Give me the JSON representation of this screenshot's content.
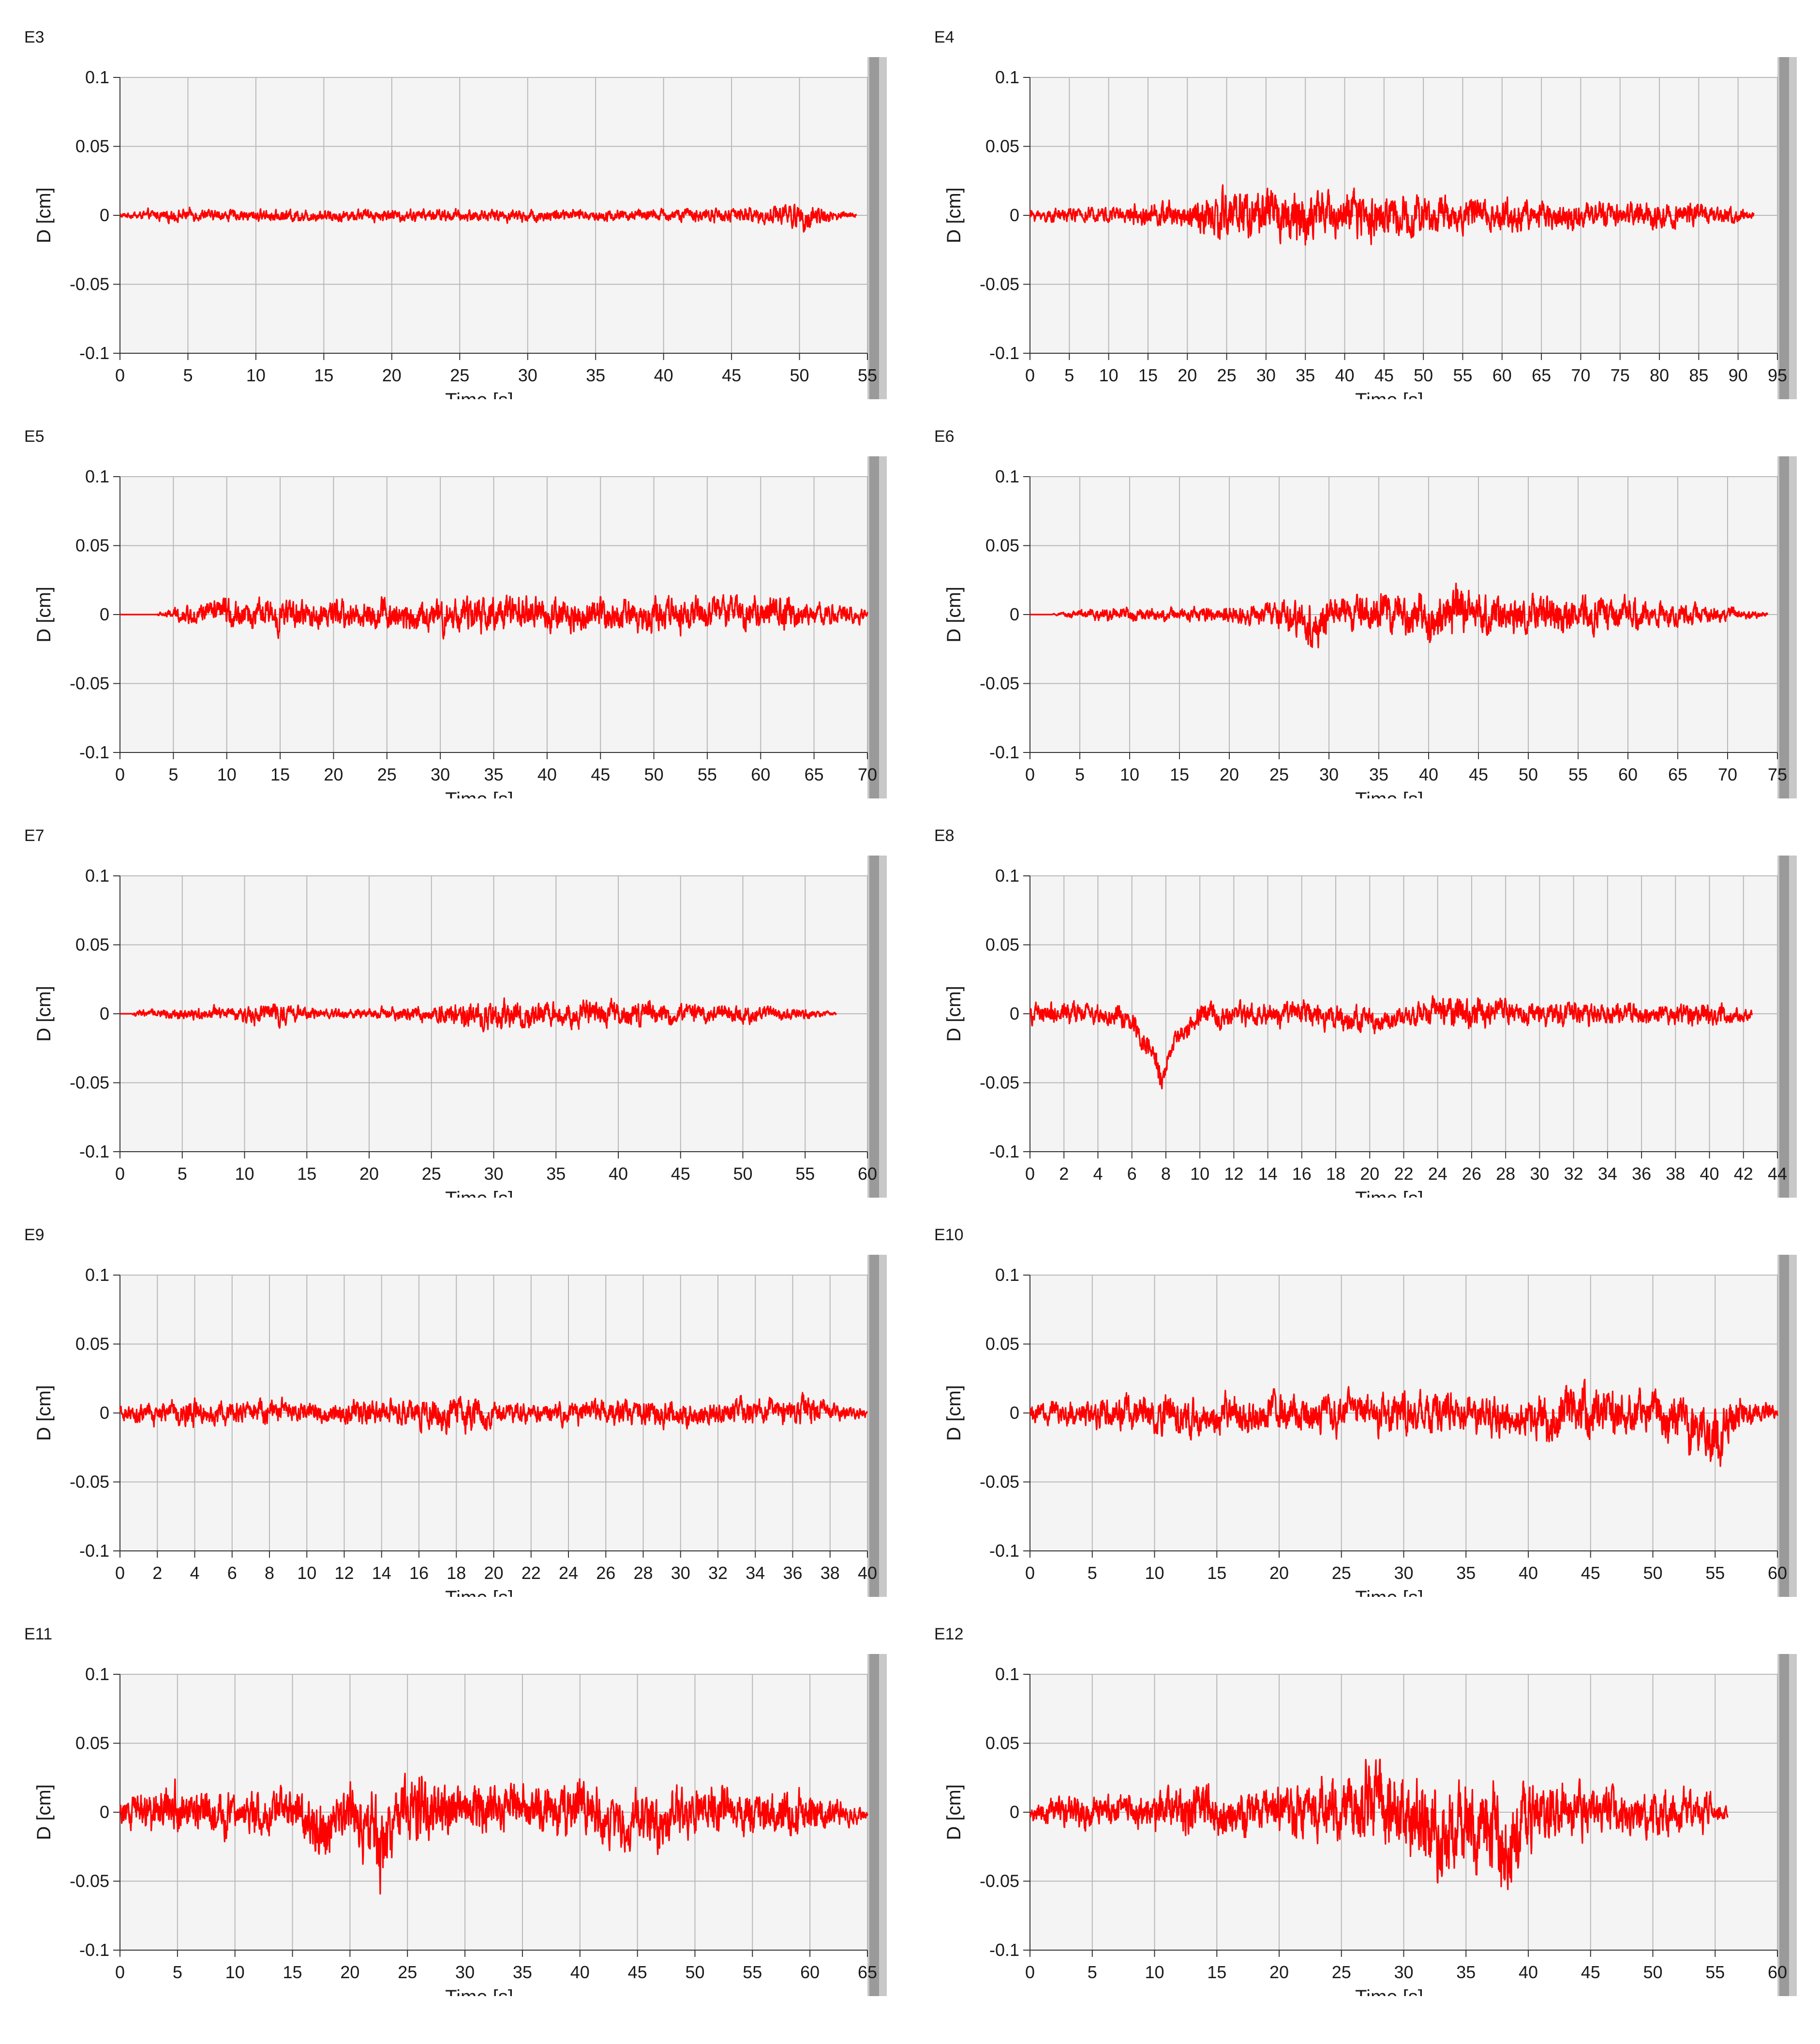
{
  "chart_data": [
    {
      "id": "E3",
      "title": "E3",
      "type": "line",
      "xlabel": "Time [s]",
      "ylabel": "D [cm]",
      "xlim": [
        0,
        55
      ],
      "ylim": [
        -0.1,
        0.1
      ],
      "xticks": [
        0,
        5,
        10,
        15,
        20,
        25,
        30,
        35,
        40,
        45,
        50,
        55
      ],
      "yticks": [
        0.1,
        0.05,
        0,
        -0.05,
        -0.1
      ],
      "yticklabels": [
        "0.1",
        "0.05",
        "0",
        "-0.05",
        "-0.1"
      ],
      "grid": true,
      "series": [
        {
          "color": "#ff0000",
          "duration": 54.2,
          "onset": 0,
          "x": [
            0,
            2,
            4,
            6,
            8,
            10,
            15,
            20,
            25,
            30,
            35,
            40,
            45,
            48,
            50,
            51,
            52,
            54.2
          ],
          "amp": [
            0.002,
            0.004,
            0.005,
            0.005,
            0.005,
            0.005,
            0.005,
            0.005,
            0.005,
            0.005,
            0.005,
            0.005,
            0.006,
            0.008,
            0.011,
            0.011,
            0.006,
            0.002
          ],
          "bias": [
            0,
            0,
            0,
            0,
            0,
            0,
            0,
            0,
            0,
            0,
            0,
            0,
            0,
            0,
            0,
            0,
            0,
            0
          ]
        }
      ]
    },
    {
      "id": "E4",
      "title": "E4",
      "type": "line",
      "xlabel": "Time [s]",
      "ylabel": "D [cm]",
      "xlim": [
        0,
        95
      ],
      "ylim": [
        -0.1,
        0.1
      ],
      "xticks": [
        0,
        5,
        10,
        15,
        20,
        25,
        30,
        35,
        40,
        45,
        50,
        55,
        60,
        65,
        70,
        75,
        80,
        85,
        90,
        95
      ],
      "yticks": [
        0.1,
        0.05,
        0,
        -0.05,
        -0.1
      ],
      "yticklabels": [
        "0.1",
        "0.05",
        "0",
        "-0.05",
        "-0.1"
      ],
      "grid": true,
      "series": [
        {
          "color": "#ff0000",
          "duration": 92,
          "onset": 0,
          "x": [
            0,
            5,
            10,
            15,
            20,
            23,
            27,
            30,
            34,
            37,
            45,
            50,
            55,
            60,
            65,
            70,
            75,
            80,
            85,
            90,
            92
          ],
          "amp": [
            0.005,
            0.006,
            0.007,
            0.009,
            0.012,
            0.021,
            0.024,
            0.02,
            0.023,
            0.017,
            0.021,
            0.016,
            0.013,
            0.014,
            0.012,
            0.011,
            0.01,
            0.01,
            0.009,
            0.007,
            0.002
          ],
          "bias": [
            0,
            0,
            0,
            0,
            0,
            0,
            0,
            0,
            0,
            0,
            0,
            0,
            0,
            0,
            0,
            0,
            0,
            0,
            0,
            0,
            0
          ]
        }
      ]
    },
    {
      "id": "E5",
      "title": "E5",
      "type": "line",
      "xlabel": "Time [s]",
      "ylabel": "D [cm]",
      "xlim": [
        0,
        70
      ],
      "ylim": [
        -0.1,
        0.1
      ],
      "xticks": [
        0,
        5,
        10,
        15,
        20,
        25,
        30,
        35,
        40,
        45,
        50,
        55,
        60,
        65,
        70
      ],
      "yticks": [
        0.1,
        0.05,
        0,
        -0.05,
        -0.1
      ],
      "yticklabels": [
        "0.1",
        "0.05",
        "0",
        "-0.05",
        "-0.1"
      ],
      "grid": true,
      "series": [
        {
          "color": "#ff0000",
          "duration": 70,
          "onset": 3.5,
          "x": [
            0,
            3,
            5,
            8,
            10,
            20,
            30,
            40,
            50,
            60,
            65,
            70
          ],
          "amp": [
            0,
            0,
            0.005,
            0.01,
            0.012,
            0.012,
            0.014,
            0.014,
            0.014,
            0.015,
            0.01,
            0.006
          ],
          "bias": [
            0,
            0,
            0,
            0,
            0,
            0,
            0,
            0,
            0,
            0,
            0,
            0
          ]
        }
      ]
    },
    {
      "id": "E6",
      "title": "E6",
      "type": "line",
      "xlabel": "Time [s]",
      "ylabel": "D [cm]",
      "xlim": [
        0,
        75
      ],
      "ylim": [
        -0.1,
        0.1
      ],
      "xticks": [
        0,
        5,
        10,
        15,
        20,
        25,
        30,
        35,
        40,
        45,
        50,
        55,
        60,
        65,
        70,
        75
      ],
      "yticks": [
        0.1,
        0.05,
        0,
        -0.05,
        -0.1
      ],
      "yticklabels": [
        "0.1",
        "0.05",
        "0",
        "-0.05",
        "-0.1"
      ],
      "grid": true,
      "series": [
        {
          "color": "#ff0000",
          "duration": 74,
          "onset": 2,
          "x": [
            0,
            2,
            5,
            10,
            15,
            20,
            25,
            28,
            29,
            30,
            35,
            40,
            43,
            45,
            50,
            55,
            60,
            65,
            70,
            74
          ],
          "amp": [
            0,
            0,
            0.004,
            0.006,
            0.005,
            0.007,
            0.01,
            0.018,
            0.022,
            0.013,
            0.016,
            0.018,
            0.02,
            0.017,
            0.016,
            0.016,
            0.012,
            0.01,
            0.006,
            0.002
          ],
          "bias": [
            0,
            0,
            0,
            0,
            0,
            0,
            0,
            -0.006,
            -0.012,
            0,
            0,
            0,
            0,
            0,
            0,
            0,
            0,
            0,
            0,
            0
          ]
        }
      ]
    },
    {
      "id": "E7",
      "title": "E7",
      "type": "line",
      "xlabel": "Time [s]",
      "ylabel": "D [cm]",
      "xlim": [
        0,
        60
      ],
      "ylim": [
        -0.1,
        0.1
      ],
      "xticks": [
        0,
        5,
        10,
        15,
        20,
        25,
        30,
        35,
        40,
        45,
        50,
        55,
        60
      ],
      "yticks": [
        0.1,
        0.05,
        0,
        -0.05,
        -0.1
      ],
      "yticklabels": [
        "0.1",
        "0.05",
        "0",
        "-0.05",
        "-0.1"
      ],
      "grid": true,
      "series": [
        {
          "color": "#ff0000",
          "duration": 57.5,
          "onset": 1,
          "x": [
            0,
            2,
            5,
            10,
            12,
            15,
            20,
            25,
            30,
            35,
            40,
            45,
            50,
            55,
            57.5
          ],
          "amp": [
            0.001,
            0.003,
            0.005,
            0.006,
            0.009,
            0.005,
            0.004,
            0.007,
            0.013,
            0.01,
            0.011,
            0.008,
            0.007,
            0.004,
            0.001
          ],
          "bias": [
            0,
            0,
            0,
            0,
            0,
            0,
            0,
            0,
            -0.003,
            0,
            0,
            0,
            0,
            0,
            0
          ]
        }
      ]
    },
    {
      "id": "E8",
      "title": "E8",
      "type": "line",
      "xlabel": "Time [s]",
      "ylabel": "D [cm]",
      "xlim": [
        0,
        44
      ],
      "ylim": [
        -0.1,
        0.1
      ],
      "xticks": [
        0,
        2,
        4,
        6,
        8,
        10,
        12,
        14,
        16,
        18,
        20,
        22,
        24,
        26,
        28,
        30,
        32,
        34,
        36,
        38,
        40,
        42,
        44
      ],
      "yticks": [
        0.1,
        0.05,
        0,
        -0.05,
        -0.1
      ],
      "yticklabels": [
        "0.1",
        "0.05",
        "0",
        "-0.05",
        "-0.1"
      ],
      "grid": true,
      "series": [
        {
          "color": "#ff0000",
          "duration": 42.5,
          "onset": 0,
          "x": [
            0,
            2,
            4,
            6,
            7,
            7.8,
            8.5,
            10,
            12,
            16,
            20,
            22,
            24,
            25.5,
            27,
            30,
            34,
            38,
            40,
            42,
            42.5
          ],
          "amp": [
            0.008,
            0.01,
            0.009,
            0.01,
            0.01,
            0.012,
            0.008,
            0.01,
            0.009,
            0.011,
            0.01,
            0.008,
            0.012,
            0.015,
            0.012,
            0.01,
            0.009,
            0.008,
            0.01,
            0.005,
            0.003
          ],
          "bias": [
            0,
            0,
            0,
            -0.004,
            -0.025,
            -0.048,
            -0.02,
            0,
            0,
            0,
            -0.006,
            -0.004,
            0.004,
            0.002,
            0,
            0,
            0,
            0,
            0,
            -0.002,
            0
          ]
        }
      ]
    },
    {
      "id": "E9",
      "title": "E9",
      "type": "line",
      "xlabel": "Time [s]",
      "ylabel": "D [cm]",
      "xlim": [
        0,
        40
      ],
      "ylim": [
        -0.1,
        0.1
      ],
      "xticks": [
        0,
        2,
        4,
        6,
        8,
        10,
        12,
        14,
        16,
        18,
        20,
        22,
        24,
        26,
        28,
        30,
        32,
        34,
        36,
        38,
        40
      ],
      "yticks": [
        0.1,
        0.05,
        0,
        -0.05,
        -0.1
      ],
      "yticklabels": [
        "0.1",
        "0.05",
        "0",
        "-0.05",
        "-0.1"
      ],
      "grid": true,
      "series": [
        {
          "color": "#ff0000",
          "duration": 40,
          "onset": 0,
          "x": [
            0,
            2,
            4,
            6,
            8,
            10,
            12,
            14,
            16,
            17,
            18,
            20,
            22,
            24,
            26,
            28,
            30,
            32,
            34,
            36,
            37,
            38,
            40
          ],
          "amp": [
            0.006,
            0.01,
            0.011,
            0.01,
            0.01,
            0.009,
            0.01,
            0.01,
            0.012,
            0.015,
            0.016,
            0.011,
            0.008,
            0.009,
            0.01,
            0.011,
            0.01,
            0.01,
            0.01,
            0.012,
            0.013,
            0.008,
            0.004
          ],
          "bias": [
            0,
            0,
            0,
            0,
            0,
            0,
            0,
            0,
            0,
            -0.003,
            0.002,
            0,
            0,
            0,
            0,
            0,
            0,
            0,
            0,
            0,
            0.003,
            0,
            0
          ]
        }
      ]
    },
    {
      "id": "E10",
      "title": "E10",
      "type": "line",
      "xlabel": "Time [s]",
      "ylabel": "D [cm]",
      "xlim": [
        0,
        60
      ],
      "ylim": [
        -0.1,
        0.1
      ],
      "xticks": [
        0,
        5,
        10,
        15,
        20,
        25,
        30,
        35,
        40,
        45,
        50,
        55,
        60
      ],
      "yticks": [
        0.1,
        0.05,
        0,
        -0.05,
        -0.1
      ],
      "yticklabels": [
        "0.1",
        "0.05",
        "0",
        "-0.05",
        "-0.1"
      ],
      "grid": true,
      "series": [
        {
          "color": "#ff0000",
          "duration": 60,
          "onset": 0,
          "x": [
            0,
            5,
            10,
            15,
            20,
            25,
            30,
            35,
            40,
            42,
            44,
            45,
            48,
            50,
            53,
            55,
            57,
            60
          ],
          "amp": [
            0.008,
            0.012,
            0.016,
            0.016,
            0.016,
            0.016,
            0.017,
            0.016,
            0.017,
            0.02,
            0.025,
            0.022,
            0.018,
            0.018,
            0.022,
            0.026,
            0.015,
            0.005
          ],
          "bias": [
            0,
            0,
            0,
            -0.004,
            0,
            0,
            0,
            0,
            -0.004,
            -0.01,
            0.008,
            0,
            0,
            0,
            -0.01,
            -0.018,
            0,
            0
          ]
        }
      ]
    },
    {
      "id": "E11",
      "title": "E11",
      "type": "line",
      "xlabel": "Time [s]",
      "ylabel": "D [cm]",
      "xlim": [
        0,
        65
      ],
      "ylim": [
        -0.1,
        0.1
      ],
      "xticks": [
        0,
        5,
        10,
        15,
        20,
        25,
        30,
        35,
        40,
        45,
        50,
        55,
        60,
        65
      ],
      "yticks": [
        0.1,
        0.05,
        0,
        -0.05,
        -0.1
      ],
      "yticklabels": [
        "0.1",
        "0.05",
        "0",
        "-0.05",
        "-0.1"
      ],
      "grid": true,
      "series": [
        {
          "color": "#ff0000",
          "duration": 65,
          "onset": 0,
          "x": [
            0,
            5,
            10,
            15,
            17,
            18,
            20,
            22,
            22.5,
            23,
            25,
            30,
            35,
            40,
            45,
            48,
            50,
            55,
            60,
            65
          ],
          "amp": [
            0.012,
            0.022,
            0.018,
            0.018,
            0.025,
            0.025,
            0.022,
            0.035,
            0.04,
            0.03,
            0.028,
            0.022,
            0.022,
            0.024,
            0.022,
            0.024,
            0.02,
            0.02,
            0.02,
            0.005
          ],
          "bias": [
            0,
            0,
            0,
            0,
            -0.006,
            -0.012,
            0,
            -0.018,
            -0.03,
            -0.015,
            0.006,
            0,
            0,
            0,
            0,
            -0.008,
            0,
            0,
            0,
            0
          ]
        }
      ]
    },
    {
      "id": "E12",
      "title": "E12",
      "type": "line",
      "xlabel": "Time [s]",
      "ylabel": "D [cm]",
      "xlim": [
        0,
        60
      ],
      "ylim": [
        -0.1,
        0.1
      ],
      "xticks": [
        0,
        5,
        10,
        15,
        20,
        25,
        30,
        35,
        40,
        45,
        50,
        55,
        60
      ],
      "yticks": [
        0.1,
        0.05,
        0,
        -0.05,
        -0.1
      ],
      "yticklabels": [
        "0.1",
        "0.05",
        "0",
        "-0.05",
        "-0.1"
      ],
      "grid": true,
      "series": [
        {
          "color": "#ff0000",
          "duration": 56,
          "onset": 0,
          "x": [
            0,
            5,
            10,
            14,
            15,
            20,
            25,
            28,
            30,
            32,
            33,
            35,
            36,
            38,
            40,
            45,
            50,
            53,
            55,
            56
          ],
          "amp": [
            0.008,
            0.014,
            0.016,
            0.022,
            0.018,
            0.02,
            0.025,
            0.035,
            0.03,
            0.04,
            0.035,
            0.035,
            0.04,
            0.04,
            0.025,
            0.02,
            0.018,
            0.018,
            0.012,
            0.005
          ],
          "bias": [
            0,
            0,
            0,
            0.008,
            0,
            0,
            0,
            0.008,
            0,
            -0.01,
            -0.02,
            0,
            -0.01,
            -0.028,
            0,
            0,
            0,
            0,
            0,
            0
          ]
        }
      ]
    }
  ]
}
